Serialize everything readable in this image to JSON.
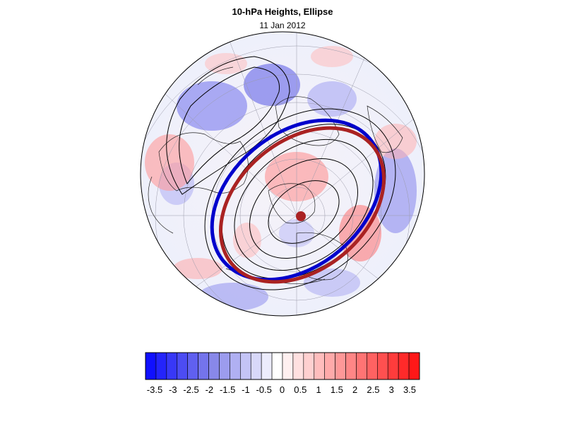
{
  "title": "10-hPa Heights, Ellipse",
  "subtitle": "11 Jan 2012",
  "colorbar": {
    "labels": [
      "-3.5",
      "-3",
      "-2.5",
      "-2",
      "-1.5",
      "-1",
      "-0.5",
      "0",
      "0.5",
      "1",
      "1.5",
      "2",
      "2.5",
      "3",
      "3.5"
    ],
    "colors": [
      "#1010ff",
      "#2424fb",
      "#3838f7",
      "#4c4cf3",
      "#6060f0",
      "#7474ec",
      "#8888e9",
      "#9c9cee",
      "#b0b0f2",
      "#c4c4f6",
      "#d8d8f9",
      "#ececfc",
      "#ffffff",
      "#fff0f0",
      "#ffe0e0",
      "#ffd0d0",
      "#ffbdbd",
      "#ffaaaa",
      "#ff9898",
      "#ff8686",
      "#ff7474",
      "#ff6262",
      "#ff5050",
      "#ff3c3c",
      "#ff2a2a",
      "#ff1818"
    ]
  },
  "legend_colors": {
    "ellipse_blue": "#0000cc",
    "ellipse_red": "#aa2222",
    "center_dot": "#aa2222"
  }
}
